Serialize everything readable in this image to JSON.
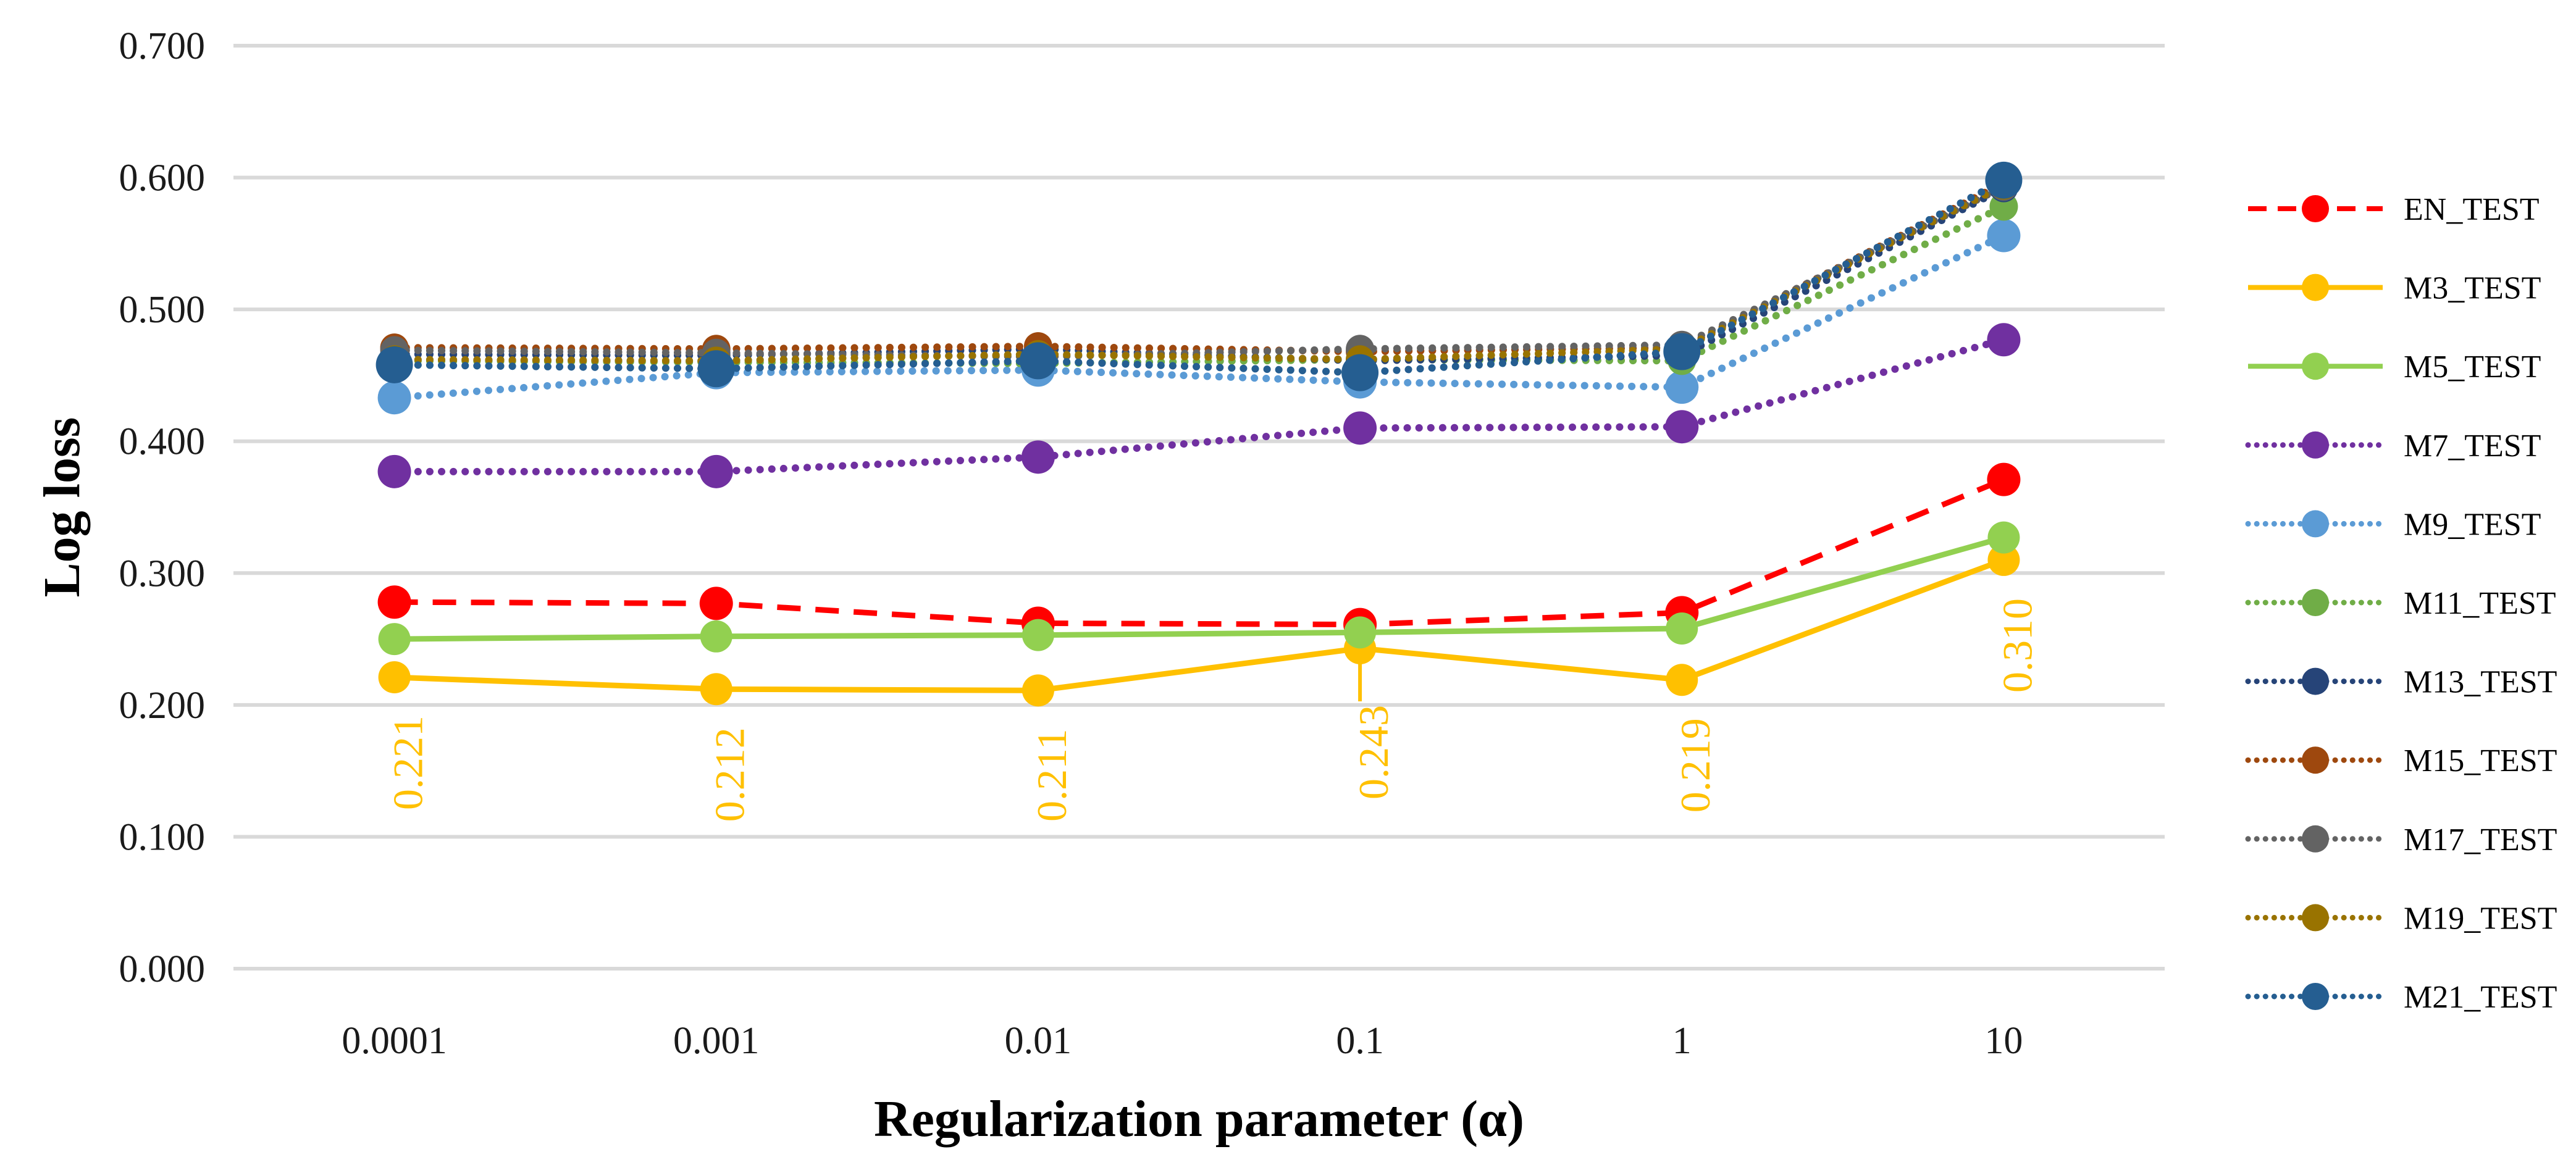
{
  "chart_data": {
    "type": "line",
    "title": "",
    "xlabel": "Regularization parameter (α)",
    "ylabel": "Log loss",
    "categories": [
      "0.0001",
      "0.001",
      "0.01",
      "0.1",
      "1",
      "10"
    ],
    "y_tick_labels": [
      "0.000",
      "0.100",
      "0.200",
      "0.300",
      "0.400",
      "0.500",
      "0.600",
      "0.700"
    ],
    "ylim": [
      0.0,
      0.7
    ],
    "y_tick_step": 0.1,
    "grid": "horizontal",
    "gridline_color": "#D9D9D9",
    "background_color": "#FFFFFF",
    "text_color": "#1A1A1A",
    "legend_position": "right",
    "series": [
      {
        "name": "EN_TEST",
        "color": "#FF0000",
        "line_style": "dashed",
        "marker": "circle",
        "marker_radius": 27,
        "values": [
          0.278,
          0.277,
          0.262,
          0.261,
          0.27,
          0.371
        ]
      },
      {
        "name": "M3_TEST",
        "color": "#FFC000",
        "line_style": "solid",
        "marker": "circle",
        "marker_radius": 26,
        "values": [
          0.221,
          0.212,
          0.211,
          0.243,
          0.219,
          0.31
        ],
        "data_labels": [
          "0.221",
          "0.212",
          "0.211",
          "0.243",
          "0.219",
          "0.310"
        ],
        "data_label_color": "#FFC000",
        "data_label_rotation": -90,
        "leader_line_index": 3
      },
      {
        "name": "M5_TEST",
        "color": "#92D050",
        "line_style": "solid",
        "marker": "circle",
        "marker_radius": 26,
        "values": [
          0.25,
          0.252,
          0.253,
          0.255,
          0.258,
          0.327
        ]
      },
      {
        "name": "M7_TEST",
        "color": "#7030A0",
        "line_style": "dotted",
        "marker": "circle",
        "marker_radius": 27,
        "values": [
          0.377,
          0.377,
          0.388,
          0.41,
          0.411,
          0.477
        ]
      },
      {
        "name": "M9_TEST",
        "color": "#5B9BD5",
        "line_style": "dotted",
        "marker": "circle",
        "marker_radius": 27,
        "values": [
          0.433,
          0.452,
          0.454,
          0.445,
          0.441,
          0.556
        ]
      },
      {
        "name": "M11_TEST",
        "color": "#70AD47",
        "line_style": "dotted",
        "marker": "circle",
        "marker_radius": 23,
        "values": [
          0.461,
          0.46,
          0.459,
          0.462,
          0.461,
          0.578
        ]
      },
      {
        "name": "M13_TEST",
        "color": "#264478",
        "line_style": "dotted",
        "marker": "circle",
        "marker_radius": 23,
        "values": [
          0.466,
          0.465,
          0.47,
          0.461,
          0.465,
          0.592
        ]
      },
      {
        "name": "M15_TEST",
        "color": "#9E480E",
        "line_style": "dotted",
        "marker": "circle",
        "marker_radius": 23,
        "values": [
          0.471,
          0.47,
          0.472,
          0.468,
          0.471,
          0.596
        ]
      },
      {
        "name": "M17_TEST",
        "color": "#636363",
        "line_style": "dotted",
        "marker": "circle",
        "marker_radius": 23,
        "values": [
          0.469,
          0.467,
          0.464,
          0.47,
          0.473,
          0.593
        ]
      },
      {
        "name": "M19_TEST",
        "color": "#997300",
        "line_style": "dotted",
        "marker": "circle",
        "marker_radius": 23,
        "values": [
          0.462,
          0.461,
          0.466,
          0.462,
          0.47,
          0.594
        ]
      },
      {
        "name": "M21_TEST",
        "color": "#255E91",
        "line_style": "dotted",
        "marker": "circle",
        "marker_radius": 30,
        "values": [
          0.458,
          0.455,
          0.461,
          0.452,
          0.468,
          0.598
        ]
      }
    ]
  }
}
